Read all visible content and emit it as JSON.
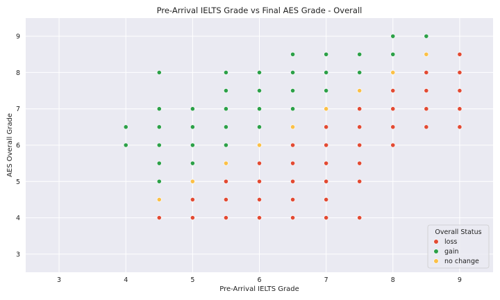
{
  "chart_data": {
    "type": "scatter",
    "title": "Pre-Arrival IELTS Grade vs Final AES Grade - Overall",
    "xlabel": "Pre-Arrival IELTS Grade",
    "ylabel": "AES Overall Grade",
    "xlim": [
      2.5,
      9.5
    ],
    "ylim": [
      2.5,
      9.5
    ],
    "xticks": [
      "3",
      "4",
      "5",
      "6",
      "7",
      "8",
      "9"
    ],
    "yticks": [
      "3",
      "4",
      "5",
      "6",
      "7",
      "8",
      "9"
    ],
    "grid": true,
    "legend": {
      "title": "Overall Status",
      "position": "bottom-right",
      "entries": [
        "loss",
        "gain",
        "no change"
      ]
    },
    "series": [
      {
        "name": "loss",
        "color": "#e24a33",
        "points": [
          [
            4.5,
            4
          ],
          [
            5,
            4
          ],
          [
            5,
            4.5
          ],
          [
            5.5,
            4
          ],
          [
            5.5,
            4.5
          ],
          [
            5.5,
            5
          ],
          [
            6,
            4
          ],
          [
            6,
            4.5
          ],
          [
            6,
            5
          ],
          [
            6,
            5.5
          ],
          [
            6.5,
            4
          ],
          [
            6.5,
            4.5
          ],
          [
            6.5,
            5
          ],
          [
            6.5,
            5.5
          ],
          [
            6.5,
            6
          ],
          [
            7,
            4
          ],
          [
            7,
            4.5
          ],
          [
            7,
            5
          ],
          [
            7,
            5.5
          ],
          [
            7,
            6
          ],
          [
            7,
            6.5
          ],
          [
            7.5,
            4
          ],
          [
            7.5,
            5
          ],
          [
            7.5,
            5.5
          ],
          [
            7.5,
            6
          ],
          [
            7.5,
            6.5
          ],
          [
            7.5,
            7
          ],
          [
            8,
            6
          ],
          [
            8,
            6.5
          ],
          [
            8,
            7
          ],
          [
            8,
            7.5
          ],
          [
            8.5,
            6.5
          ],
          [
            8.5,
            7
          ],
          [
            8.5,
            7.5
          ],
          [
            8.5,
            8
          ],
          [
            9,
            6.5
          ],
          [
            9,
            7
          ],
          [
            9,
            7.5
          ],
          [
            9,
            8
          ],
          [
            9,
            8.5
          ]
        ]
      },
      {
        "name": "gain",
        "color": "#2ca048",
        "points": [
          [
            4,
            6
          ],
          [
            4,
            6.5
          ],
          [
            4.5,
            5
          ],
          [
            4.5,
            5.5
          ],
          [
            4.5,
            6
          ],
          [
            4.5,
            6.5
          ],
          [
            4.5,
            7
          ],
          [
            4.5,
            8
          ],
          [
            5,
            5.5
          ],
          [
            5,
            6
          ],
          [
            5,
            6.5
          ],
          [
            5,
            7
          ],
          [
            5.5,
            6
          ],
          [
            5.5,
            6.5
          ],
          [
            5.5,
            7
          ],
          [
            5.5,
            7.5
          ],
          [
            5.5,
            8
          ],
          [
            6,
            6.5
          ],
          [
            6,
            7
          ],
          [
            6,
            7.5
          ],
          [
            6,
            8
          ],
          [
            6.5,
            7
          ],
          [
            6.5,
            7.5
          ],
          [
            6.5,
            8
          ],
          [
            6.5,
            8.5
          ],
          [
            7,
            7.5
          ],
          [
            7,
            8
          ],
          [
            7,
            8.5
          ],
          [
            7.5,
            8
          ],
          [
            7.5,
            8.5
          ],
          [
            8,
            8.5
          ],
          [
            8,
            9
          ],
          [
            8.5,
            9
          ]
        ]
      },
      {
        "name": "no change",
        "color": "#fbc047",
        "points": [
          [
            4.5,
            4.5
          ],
          [
            5,
            5
          ],
          [
            5.5,
            5.5
          ],
          [
            6,
            6
          ],
          [
            6.5,
            6.5
          ],
          [
            7,
            7
          ],
          [
            7.5,
            7.5
          ],
          [
            8,
            8
          ],
          [
            8.5,
            8.5
          ]
        ]
      }
    ]
  }
}
